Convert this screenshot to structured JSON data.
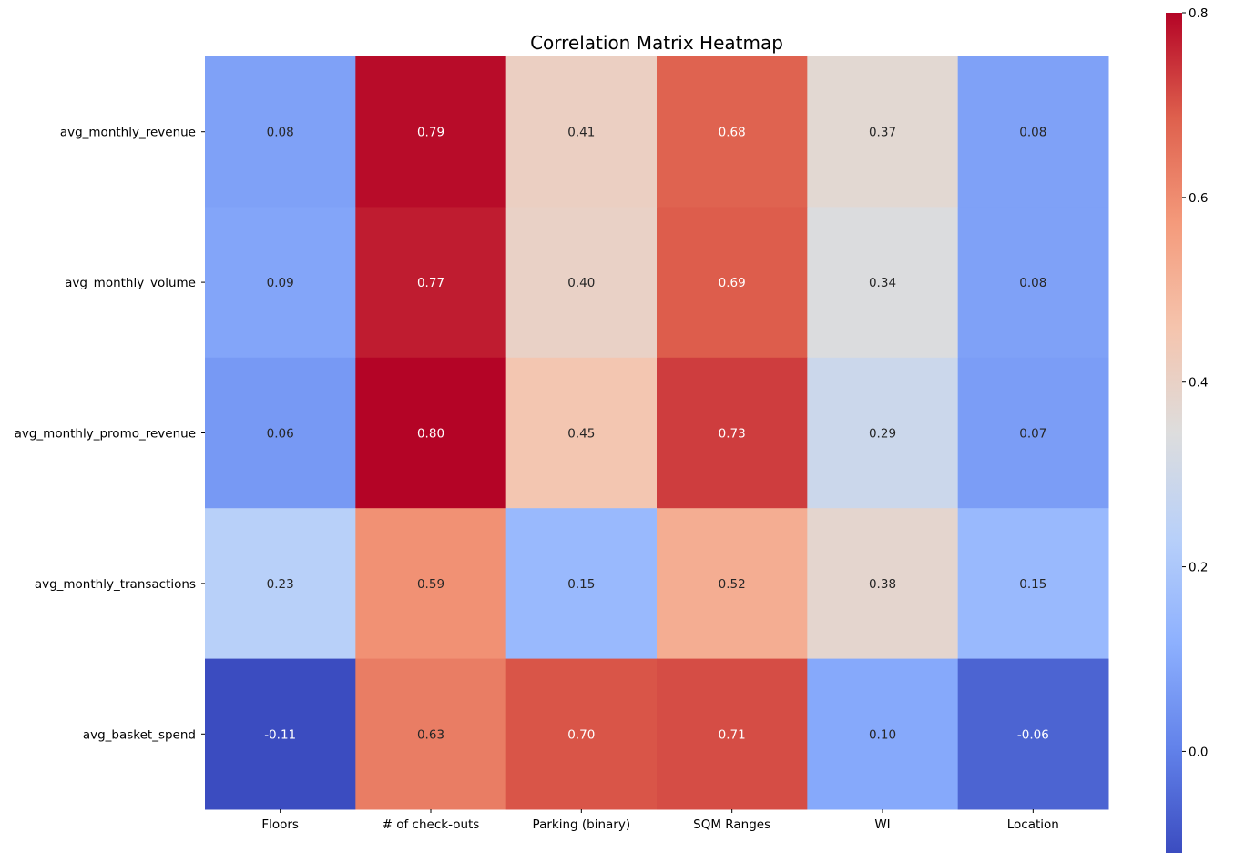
{
  "chart_data": {
    "type": "heatmap",
    "title": "Correlation Matrix Heatmap",
    "xlabel": "",
    "ylabel": "",
    "x_categories": [
      "Floors",
      "# of check-outs",
      "Parking (binary)",
      "SQM Ranges",
      "WI",
      "Location"
    ],
    "y_categories": [
      "avg_monthly_revenue",
      "avg_monthly_volume",
      "avg_monthly_promo_revenue",
      "avg_monthly_transactions",
      "avg_basket_spend"
    ],
    "values": [
      [
        0.08,
        0.79,
        0.41,
        0.68,
        0.37,
        0.08
      ],
      [
        0.09,
        0.77,
        0.4,
        0.69,
        0.34,
        0.08
      ],
      [
        0.06,
        0.8,
        0.45,
        0.73,
        0.29,
        0.07
      ],
      [
        0.23,
        0.59,
        0.15,
        0.52,
        0.38,
        0.15
      ],
      [
        -0.11,
        0.63,
        0.7,
        0.71,
        0.1,
        -0.06
      ]
    ],
    "cell_labels": [
      [
        "0.08",
        "0.79",
        "0.41",
        "0.68",
        "0.37",
        "0.08"
      ],
      [
        "0.09",
        "0.77",
        "0.40",
        "0.69",
        "0.34",
        "0.08"
      ],
      [
        "0.06",
        "0.80",
        "0.45",
        "0.73",
        "0.29",
        "0.07"
      ],
      [
        "0.23",
        "0.59",
        "0.15",
        "0.52",
        "0.38",
        "0.15"
      ],
      [
        "-0.11",
        "0.63",
        "0.70",
        "0.71",
        "0.10",
        "-0.06"
      ]
    ],
    "colormap": "coolwarm",
    "colorbar": {
      "range": [
        -0.11,
        0.8
      ],
      "ticks": [
        0.0,
        0.2,
        0.4,
        0.6,
        0.8
      ],
      "tick_labels": [
        "0.0",
        "0.2",
        "0.4",
        "0.6",
        "0.8"
      ],
      "placement": "right"
    },
    "grid": false,
    "legend": "none"
  }
}
